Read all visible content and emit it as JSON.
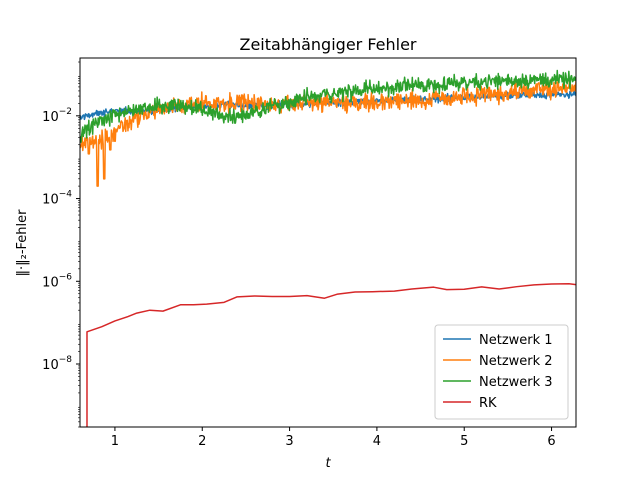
{
  "chart_data": {
    "type": "line",
    "title": "Zeitabhängiger Fehler",
    "xlabel": "t",
    "ylabel": "‖·‖₂-Fehler",
    "yscale": "log",
    "xlim": [
      0.6,
      6.28
    ],
    "ylim": [
      3e-10,
      0.25
    ],
    "x_ticks": [
      1,
      2,
      3,
      4,
      5,
      6
    ],
    "x_tick_labels": [
      "1",
      "2",
      "3",
      "4",
      "5",
      "6"
    ],
    "y_ticks": [
      1e-08,
      1e-06,
      0.0001,
      0.01
    ],
    "y_tick_labels": [
      {
        "base": "10",
        "exp": "−8"
      },
      {
        "base": "10",
        "exp": "−6"
      },
      {
        "base": "10",
        "exp": "−4"
      },
      {
        "base": "10",
        "exp": "−2"
      }
    ],
    "grid": false,
    "legend_position": "lower-right",
    "series": [
      {
        "name": "Netzwerk 1",
        "color": "#1f77b4",
        "noisy": true,
        "noise": 0.07,
        "x": [
          0.6,
          0.8,
          1.0,
          1.2,
          1.4,
          1.6,
          1.8,
          2.0,
          2.2,
          2.5,
          3.0,
          3.5,
          4.0,
          4.5,
          5.0,
          5.5,
          6.0,
          6.28
        ],
        "y": [
          0.009,
          0.012,
          0.013,
          0.013,
          0.013,
          0.014,
          0.016,
          0.017,
          0.018,
          0.018,
          0.019,
          0.021,
          0.023,
          0.025,
          0.028,
          0.031,
          0.032,
          0.033
        ]
      },
      {
        "name": "Netzwerk 2",
        "color": "#ff7f0e",
        "noisy": true,
        "noise": 0.18,
        "dips": [
          [
            0.8,
            0.0002
          ],
          [
            0.88,
            0.0003
          ],
          [
            0.95,
            0.0015
          ],
          [
            0.7,
            0.0012
          ]
        ],
        "x": [
          0.6,
          0.7,
          0.8,
          0.9,
          1.0,
          1.1,
          1.2,
          1.3,
          1.4,
          1.6,
          1.8,
          2.0,
          2.2,
          2.5,
          3.0,
          3.5,
          4.0,
          4.5,
          5.0,
          5.5,
          6.0,
          6.28
        ],
        "y": [
          0.002,
          0.0025,
          0.0025,
          0.003,
          0.004,
          0.006,
          0.008,
          0.01,
          0.012,
          0.016,
          0.018,
          0.02,
          0.021,
          0.02,
          0.02,
          0.021,
          0.022,
          0.024,
          0.028,
          0.035,
          0.045,
          0.05
        ]
      },
      {
        "name": "Netzwerk 3",
        "color": "#2ca02c",
        "noisy": true,
        "noise": 0.16,
        "x": [
          0.6,
          0.7,
          0.8,
          0.9,
          1.0,
          1.2,
          1.4,
          1.6,
          1.8,
          2.0,
          2.2,
          2.4,
          2.6,
          2.8,
          3.0,
          3.5,
          4.0,
          4.5,
          5.0,
          5.5,
          6.0,
          6.28
        ],
        "y": [
          0.003,
          0.005,
          0.007,
          0.008,
          0.01,
          0.014,
          0.016,
          0.018,
          0.018,
          0.014,
          0.01,
          0.01,
          0.012,
          0.018,
          0.022,
          0.035,
          0.045,
          0.055,
          0.065,
          0.072,
          0.075,
          0.072
        ]
      },
      {
        "name": "RK",
        "color": "#d62728",
        "noisy": false,
        "drop_to_bottom": [
          0.66,
          0.68
        ],
        "x": [
          0.68,
          0.85,
          1.0,
          1.15,
          1.25,
          1.4,
          1.55,
          1.75,
          1.9,
          2.05,
          2.25,
          2.4,
          2.6,
          2.8,
          3.0,
          3.2,
          3.4,
          3.55,
          3.75,
          3.95,
          4.2,
          4.4,
          4.65,
          4.8,
          5.0,
          5.2,
          5.4,
          5.6,
          5.8,
          6.0,
          6.2,
          6.28
        ],
        "y": [
          6e-08,
          8e-08,
          1.1e-07,
          1.4e-07,
          1.7e-07,
          2e-07,
          1.9e-07,
          2.7e-07,
          2.7e-07,
          2.8e-07,
          3.1e-07,
          4.2e-07,
          4.4e-07,
          4.3e-07,
          4.3e-07,
          4.5e-07,
          3.9e-07,
          4.9e-07,
          5.5e-07,
          5.6e-07,
          5.8e-07,
          6.5e-07,
          7.2e-07,
          6.3e-07,
          6.4e-07,
          7.3e-07,
          6.5e-07,
          7.4e-07,
          8.2e-07,
          8.6e-07,
          8.7e-07,
          8.3e-07
        ]
      }
    ]
  }
}
